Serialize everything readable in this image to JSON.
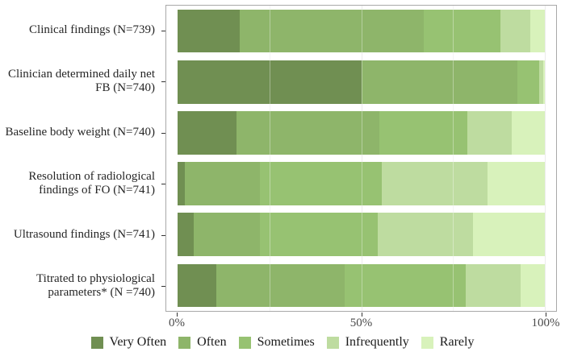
{
  "chart_data": {
    "type": "bar",
    "subtype": "horizontal_stacked_percent",
    "title": "",
    "xlabel": "",
    "ylabel": "",
    "xlim": [
      0,
      100
    ],
    "x_ticks": [
      "0%",
      "50%",
      "100%"
    ],
    "x_tick_values": [
      0,
      50,
      100
    ],
    "minor_grid_values": [
      25,
      75
    ],
    "grid": "vertical gridlines on, light gray",
    "legend_position": "bottom",
    "categories": [
      "Clinical findings (N=739)",
      "Clinician determined daily net FB (N=740)",
      "Baseline body weight (N=740)",
      "Resolution of radiological findings of FO (N=741)",
      "Ultrasound findings (N=741)",
      "Titrated to physiological parameters* (N =740)"
    ],
    "series": [
      {
        "name": "Very Often",
        "color": "#708F52",
        "values": [
          17,
          50,
          16,
          2,
          4.5,
          10.5
        ]
      },
      {
        "name": "Often",
        "color": "#8EB56A",
        "values": [
          50,
          42.5,
          39,
          20.5,
          18,
          35
        ]
      },
      {
        "name": "Sometimes",
        "color": "#97C272",
        "values": [
          21,
          6,
          24,
          33,
          32,
          33
        ]
      },
      {
        "name": "Infrequently",
        "color": "#BEDCA0",
        "values": [
          8,
          1,
          12,
          29,
          26,
          15
        ]
      },
      {
        "name": "Rarely",
        "color": "#D8F2BB",
        "values": [
          4,
          0.5,
          9,
          15.5,
          19.5,
          6.5
        ]
      }
    ],
    "colors": {
      "panel_border": "#a9a9a9",
      "major_grid": "#e2e2e2",
      "minor_grid": "#efefef",
      "tick": "#333333",
      "axis_text": "#4a4a4a",
      "label_text": "#262626",
      "background": "#ffffff"
    }
  }
}
